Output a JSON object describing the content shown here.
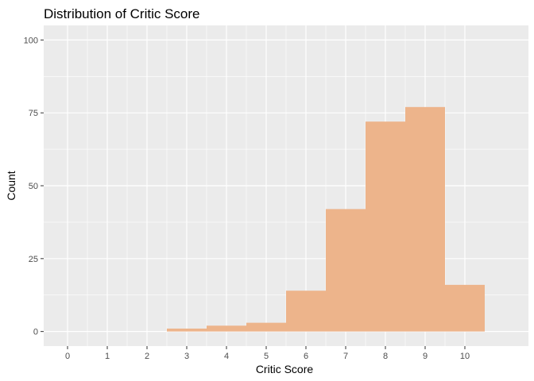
{
  "chart_data": {
    "type": "bar",
    "title": "Distribution of Critic Score",
    "xlabel": "Critic Score",
    "ylabel": "Count",
    "x_ticks": [
      "0",
      "1",
      "2",
      "3",
      "4",
      "5",
      "6",
      "7",
      "8",
      "9",
      "10"
    ],
    "y_ticks": [
      "0",
      "25",
      "50",
      "75",
      "100"
    ],
    "bins": [
      {
        "center": 3,
        "count": 1
      },
      {
        "center": 4,
        "count": 2
      },
      {
        "center": 5,
        "count": 3
      },
      {
        "center": 6,
        "count": 14
      },
      {
        "center": 7,
        "count": 42
      },
      {
        "center": 8,
        "count": 72
      },
      {
        "center": 9,
        "count": 77
      },
      {
        "center": 10,
        "count": 16
      }
    ],
    "bin_width": 1,
    "xlim": [
      -0.6,
      11.6
    ],
    "ylim": [
      -5,
      105
    ],
    "grid": true,
    "fill_color": "#EDB48B",
    "panel_color": "#EBEBEB",
    "grid_color": "#FFFFFF"
  }
}
